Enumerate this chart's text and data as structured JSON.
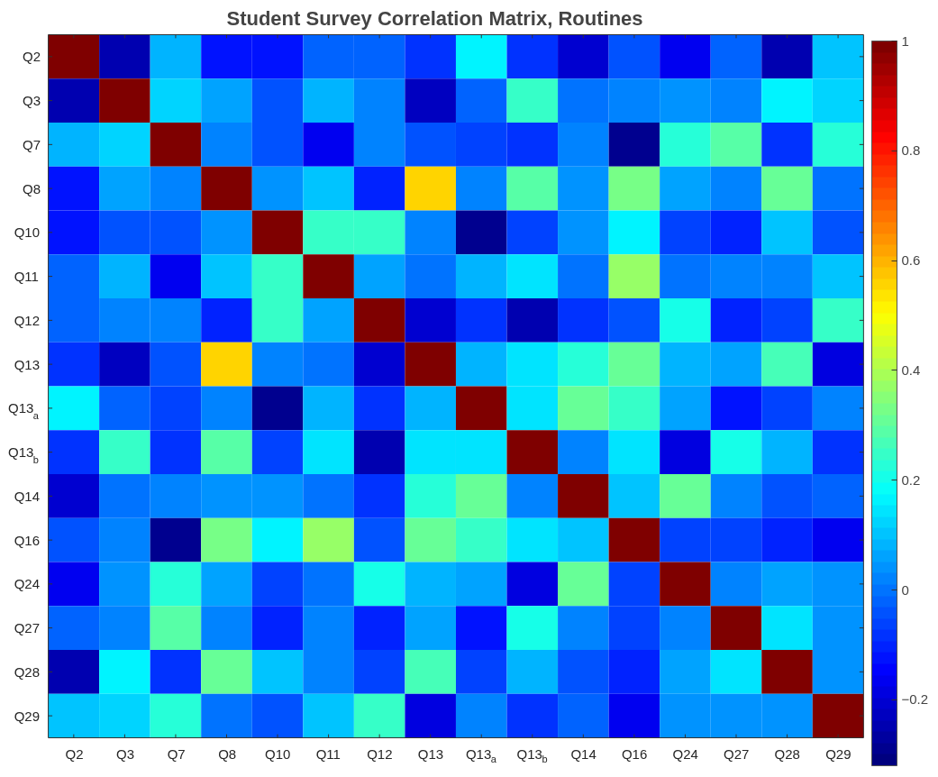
{
  "chart_data": {
    "type": "heatmap",
    "title": "Student Survey Correlation Matrix, Routines",
    "categories": [
      "Q2",
      "Q3",
      "Q7",
      "Q8",
      "Q10",
      "Q11",
      "Q12",
      "Q13",
      "Q13$_{a}$",
      "Q13$_{b}$",
      "Q14",
      "Q16",
      "Q24",
      "Q27",
      "Q28",
      "Q29"
    ],
    "y_categories": [
      "Q2",
      "Q3",
      "Q7",
      "Q8",
      "Q10",
      "Q11",
      "Q12",
      "Q13",
      "Q13$_{a}$",
      "Q13$_{b}$",
      "Q14",
      "Q16",
      "Q24",
      "Q27",
      "Q28",
      "Q29"
    ],
    "cells": [
      [
        1,
        -0.25,
        0.09,
        -0.13,
        -0.12,
        -0.03,
        -0.02,
        -0.09,
        0.17,
        -0.09,
        -0.21,
        -0.05,
        -0.16,
        -0.03,
        -0.25,
        0.1
      ],
      [
        -0.25,
        1,
        0.13,
        0.06,
        -0.05,
        0.09,
        0.01,
        -0.23,
        -0.03,
        0.24,
        0.0,
        0.01,
        0.05,
        0.01,
        0.17,
        0.12
      ],
      [
        0.09,
        0.13,
        1,
        0.01,
        -0.05,
        -0.17,
        0.02,
        -0.05,
        -0.07,
        -0.09,
        0.02,
        -0.28,
        0.23,
        0.29,
        -0.09,
        0.23
      ],
      [
        -0.13,
        0.06,
        0.01,
        1,
        0.05,
        0.11,
        -0.11,
        0.56,
        0.03,
        0.28,
        0.05,
        0.33,
        0.07,
        0.01,
        0.31,
        0.0
      ],
      [
        -0.12,
        -0.05,
        -0.05,
        0.05,
        1,
        0.25,
        0.25,
        0.03,
        -0.28,
        -0.07,
        0.05,
        0.17,
        -0.07,
        -0.11,
        0.11,
        -0.05
      ],
      [
        -0.03,
        0.09,
        -0.17,
        0.11,
        0.25,
        1,
        0.07,
        -0.01,
        0.09,
        0.14,
        0.0,
        0.38,
        0.0,
        0.03,
        0.01,
        0.1
      ],
      [
        -0.02,
        0.01,
        0.02,
        -0.11,
        0.25,
        0.07,
        1,
        -0.2,
        -0.09,
        -0.25,
        -0.09,
        -0.05,
        0.21,
        -0.11,
        -0.07,
        0.25
      ],
      [
        -0.09,
        -0.23,
        -0.05,
        0.56,
        0.03,
        -0.01,
        -0.2,
        1,
        0.09,
        0.14,
        0.23,
        0.31,
        0.09,
        0.07,
        0.27,
        -0.19
      ],
      [
        0.17,
        -0.03,
        -0.07,
        0.03,
        -0.28,
        0.09,
        -0.09,
        0.09,
        1,
        0.15,
        0.31,
        0.25,
        0.06,
        -0.12,
        -0.07,
        0.01
      ],
      [
        -0.09,
        0.24,
        -0.09,
        0.28,
        -0.07,
        0.14,
        -0.25,
        0.14,
        0.15,
        1,
        0.03,
        0.15,
        -0.19,
        0.2,
        0.09,
        -0.09
      ],
      [
        -0.21,
        0.0,
        0.02,
        0.05,
        0.05,
        0.0,
        -0.09,
        0.23,
        0.31,
        0.03,
        1,
        0.11,
        0.31,
        0.01,
        -0.05,
        -0.03
      ],
      [
        -0.05,
        0.01,
        -0.28,
        0.33,
        0.17,
        0.38,
        -0.05,
        0.31,
        0.25,
        0.15,
        0.11,
        1,
        -0.07,
        -0.06,
        -0.11,
        -0.16
      ],
      [
        -0.16,
        0.05,
        0.23,
        0.07,
        -0.07,
        0.0,
        0.21,
        0.09,
        0.06,
        -0.19,
        0.31,
        -0.07,
        1,
        0.03,
        0.06,
        0.04
      ],
      [
        -0.03,
        0.01,
        0.29,
        0.01,
        -0.11,
        0.03,
        -0.11,
        0.07,
        -0.12,
        0.2,
        0.01,
        -0.06,
        0.03,
        1,
        0.15,
        0.05
      ],
      [
        -0.25,
        0.17,
        -0.09,
        0.31,
        0.11,
        0.01,
        -0.07,
        0.27,
        -0.07,
        0.09,
        -0.05,
        -0.11,
        0.06,
        0.15,
        1,
        0.05
      ],
      [
        0.1,
        0.12,
        0.23,
        0.0,
        -0.05,
        0.1,
        0.25,
        -0.19,
        0.01,
        -0.09,
        -0.03,
        -0.16,
        0.04,
        0.05,
        0.05,
        1
      ]
    ],
    "clim": [
      -0.32,
      1
    ],
    "cticks": [
      -0.2,
      0,
      0.2,
      0.4,
      0.6,
      0.8,
      1
    ]
  }
}
